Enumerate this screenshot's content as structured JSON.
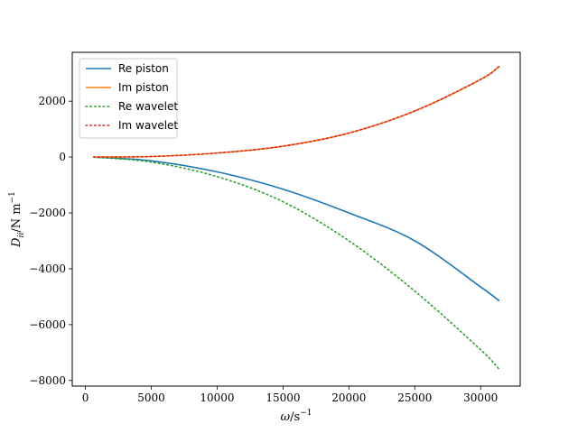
{
  "chart_data": {
    "type": "line",
    "title": "",
    "xlabel": "ω/s⁻¹",
    "ylabel": "D_ii/N m⁻¹",
    "xlim": [
      -1000,
      33000
    ],
    "ylim": [
      -8200,
      3750
    ],
    "xticks": [
      0,
      5000,
      10000,
      15000,
      20000,
      25000,
      30000
    ],
    "yticks": [
      -8000,
      -6000,
      -4000,
      -2000,
      0,
      2000
    ],
    "xtick_labels": [
      "0",
      "5000",
      "10000",
      "15000",
      "20000",
      "25000",
      "30000"
    ],
    "ytick_labels": [
      "−8000",
      "−6000",
      "−4000",
      "−2000",
      "0",
      "2000"
    ],
    "grid": false,
    "legend_position": "top-left",
    "x": [
      628,
      5000,
      10000,
      15000,
      20000,
      25000,
      30000,
      31416
    ],
    "series": [
      {
        "name": "Re piston",
        "color": "#1f77b4",
        "dash": "solid",
        "values": [
          -2,
          -135,
          -530,
          -1150,
          -2000,
          -3000,
          -4650,
          -5150
        ]
      },
      {
        "name": "Im piston",
        "color": "#ff7f0e",
        "dash": "solid",
        "values": [
          1,
          20,
          145,
          390,
          860,
          1650,
          2780,
          3250
        ]
      },
      {
        "name": "Re wavelet",
        "color": "#2ca02c",
        "dash": "dotted",
        "values": [
          -3,
          -180,
          -700,
          -1600,
          -3000,
          -4800,
          -6900,
          -7600
        ]
      },
      {
        "name": "Im wavelet",
        "color": "#d62728",
        "dash": "dotted",
        "values": [
          1,
          20,
          145,
          390,
          860,
          1650,
          2780,
          3250
        ]
      }
    ]
  }
}
